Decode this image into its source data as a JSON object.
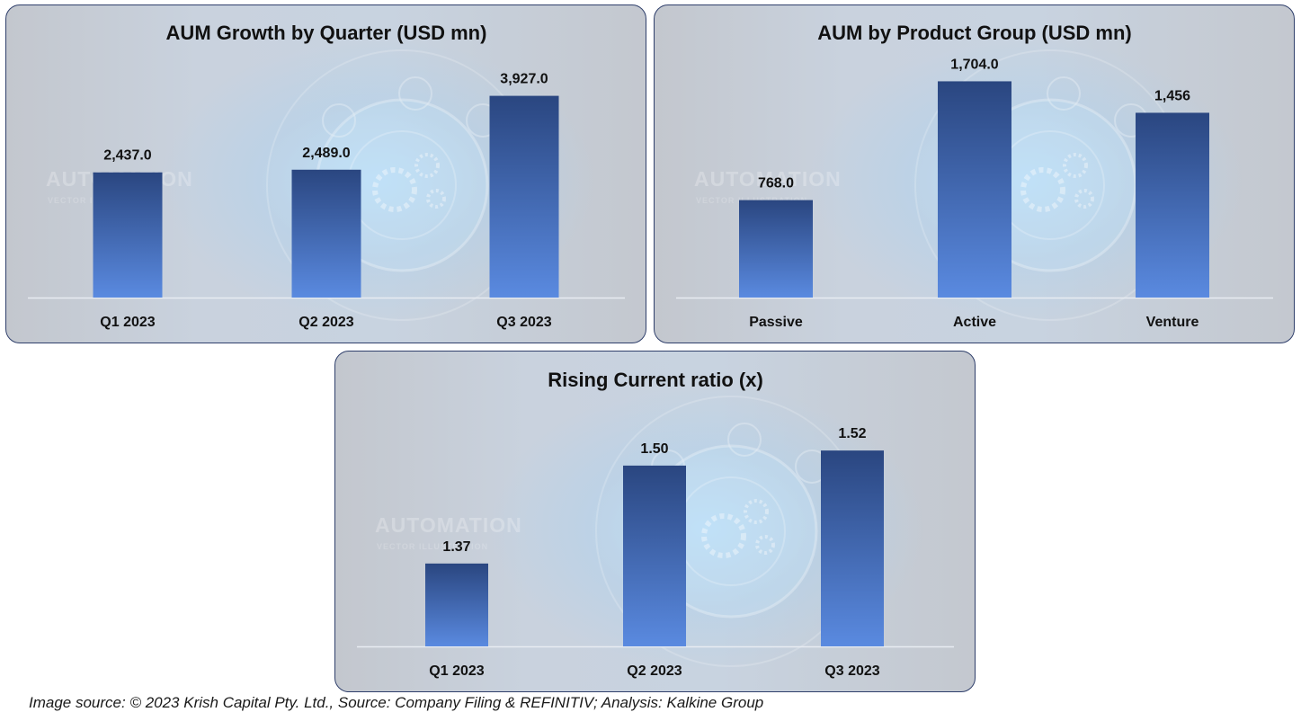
{
  "chart_data": [
    {
      "type": "bar",
      "title": "AUM Growth by Quarter (USD mn)",
      "categories": [
        "Q1 2023",
        "Q2 2023",
        "Q3 2023"
      ],
      "values": [
        2437.0,
        2489.0,
        3927.0
      ],
      "value_labels": [
        "2,437.0",
        "2,489.0",
        "3,927.0"
      ],
      "ylim": [
        0,
        4200
      ],
      "xlabel": "",
      "ylabel": "",
      "grid": false,
      "legend": "none"
    },
    {
      "type": "bar",
      "title": "AUM by Product Group (USD mn)",
      "categories": [
        "Passive",
        "Active",
        "Venture"
      ],
      "values": [
        768.0,
        1704.0,
        1456
      ],
      "value_labels": [
        "768.0",
        "1,704.0",
        "1,456"
      ],
      "ylim": [
        0,
        1700
      ],
      "xlabel": "",
      "ylabel": "",
      "grid": false,
      "legend": "none"
    },
    {
      "type": "bar",
      "title": "Rising Current ratio (x)",
      "categories": [
        "Q1 2023",
        "Q2 2023",
        "Q3 2023"
      ],
      "values": [
        1.37,
        1.5,
        1.52
      ],
      "value_labels": [
        "1.37",
        "1.50",
        "1.52"
      ],
      "ylim": [
        1.26,
        1.55
      ],
      "xlabel": "",
      "ylabel": "",
      "grid": false,
      "legend": "none"
    }
  ],
  "background": {
    "watermark": "AUTOMATION",
    "watermark_sub": "VECTOR ILLUSTRATION"
  },
  "footer": {
    "text": "Image source: © 2023 Krish Capital Pty. Ltd., Source: Company Filing & REFINITIV; Analysis: Kalkine Group"
  },
  "colors": {
    "bar_top": "#2a4680",
    "bar_bottom": "#5a8ae0",
    "frame": "#2f3f6b"
  }
}
